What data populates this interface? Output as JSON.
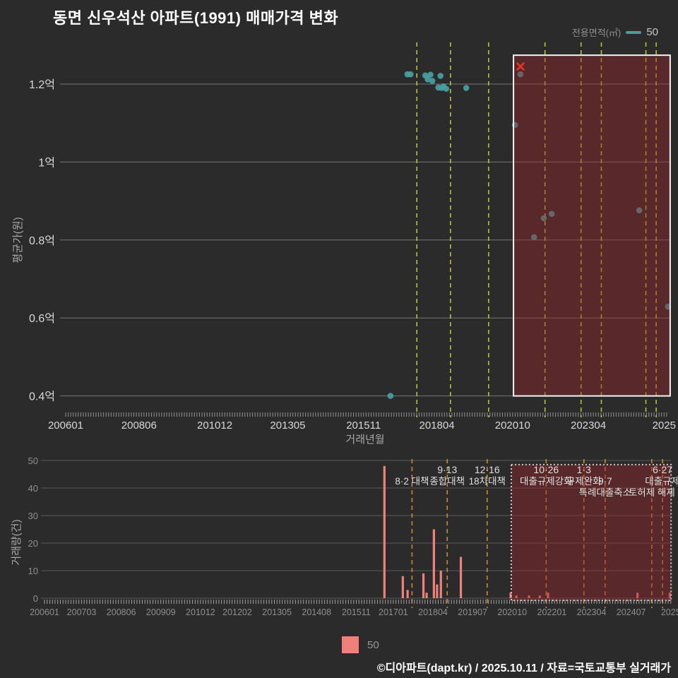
{
  "title": "동면 신우석산 아파트(1991) 매매가격 변화",
  "legend_top": {
    "label": "전용면적(㎡)",
    "value": "50"
  },
  "legend_bottom": {
    "value": "50"
  },
  "footer": "©디아파트(dapt.kr) / 2025.10.11 / 자료=국토교통부 실거래가",
  "colors": {
    "background": "#2b2b2b",
    "point": "#46a0a3",
    "bar": "#f0807a",
    "cancel_marker": "#e53529",
    "highlight_fill": "rgba(150,35,40,0.42)",
    "highlight_border_price": "#f5f5f5",
    "highlight_border_volume": "#cccccc",
    "policy_line_price": "#b8c232",
    "policy_line_volume": "#cc8832",
    "legend_line": "#4d9a9a",
    "grid": "#cfcfcf",
    "tick_label": "#d8d8d8",
    "minor_tick": "#b5b5b5",
    "axis_title": "#a8a8a8",
    "annotation_text": "#e0e0e0",
    "volume_tick_label": "#8f8f8f"
  },
  "chart_data": {
    "annotations": [
      {
        "t": 2017.59,
        "rows": [
          "",
          "8·2 대책",
          ""
        ]
      },
      {
        "t": 2018.7,
        "rows": [
          "9·13",
          "종합대책",
          ""
        ]
      },
      {
        "t": 2019.96,
        "rows": [
          "12·16",
          "18차대책",
          ""
        ]
      },
      {
        "t": 2021.82,
        "rows": [
          "10·26",
          "대출규제강화",
          ""
        ]
      },
      {
        "t": 2023.01,
        "rows": [
          "1·3",
          "규제완화",
          ""
        ]
      },
      {
        "t": 2023.68,
        "rows": [
          "",
          "9·7",
          "특례대출축소"
        ]
      },
      {
        "t": 2025.15,
        "rows": [
          "",
          "",
          "토허제 해제"
        ]
      },
      {
        "t": 2025.49,
        "rows": [
          "6·27",
          "대출규제",
          ""
        ]
      }
    ],
    "highlight_region": {
      "price": {
        "t0": 2020.78,
        "t1": 2025.95,
        "v0": 0.4,
        "v1": 1.274
      },
      "volume": {
        "t0": 2020.72,
        "t1": 2025.76,
        "c0": -0.8,
        "c1": 48.5
      }
    },
    "price_chart": {
      "type": "scatter",
      "series_name": "50",
      "xlabel": "거래년월",
      "ylabel": "평균가(원)",
      "unit": "억",
      "xlim": [
        2006.0,
        2025.92
      ],
      "ylim_values": [
        0.4,
        1.274
      ],
      "yticks": [
        {
          "v": 1.2,
          "label": "1.2억"
        },
        {
          "v": 1.0,
          "label": "1억"
        },
        {
          "v": 0.8,
          "label": "0.8억"
        },
        {
          "v": 0.6,
          "label": "0.6억"
        },
        {
          "v": 0.4,
          "label": "0.4억"
        }
      ],
      "xticks": [
        {
          "t": 2006.0,
          "label": "200601"
        },
        {
          "t": 2008.42,
          "label": "200806"
        },
        {
          "t": 2010.92,
          "label": "201012"
        },
        {
          "t": 2013.33,
          "label": "201305"
        },
        {
          "t": 2015.83,
          "label": "201511"
        },
        {
          "t": 2018.25,
          "label": "201804"
        },
        {
          "t": 2020.75,
          "label": "202010"
        },
        {
          "t": 2023.25,
          "label": "202304"
        },
        {
          "t": 2025.75,
          "label": "2025"
        }
      ],
      "points": [
        {
          "ym": "201609",
          "t": 2016.72,
          "v": 0.4
        },
        {
          "ym": "201704",
          "t": 2017.28,
          "v": 1.225
        },
        {
          "ym": "201705",
          "t": 2017.38,
          "v": 1.225
        },
        {
          "ym": "201711",
          "t": 2017.87,
          "v": 1.222
        },
        {
          "ym": "201712",
          "t": 2017.95,
          "v": 1.212
        },
        {
          "ym": "201801",
          "t": 2018.04,
          "v": 1.224
        },
        {
          "ym": "201802",
          "t": 2018.1,
          "v": 1.208
        },
        {
          "ym": "201804",
          "t": 2018.3,
          "v": 1.191
        },
        {
          "ym": "201805",
          "t": 2018.37,
          "v": 1.221
        },
        {
          "ym": "201805",
          "t": 2018.41,
          "v": 1.19
        },
        {
          "ym": "201806",
          "t": 2018.47,
          "v": 1.194
        },
        {
          "ym": "201807",
          "t": 2018.56,
          "v": 1.188
        },
        {
          "ym": "201903",
          "t": 2019.22,
          "v": 1.19
        },
        {
          "ym": "202010",
          "t": 2020.83,
          "v": 1.095
        },
        {
          "ym": "202101",
          "t": 2021.01,
          "v": 1.225
        },
        {
          "ym": "202106",
          "t": 2021.46,
          "v": 0.807
        },
        {
          "ym": "202110",
          "t": 2021.78,
          "v": 0.856
        },
        {
          "ym": "202201",
          "t": 2022.04,
          "v": 0.867
        },
        {
          "ym": "202411",
          "t": 2024.93,
          "v": 0.876
        },
        {
          "ym": "202510",
          "t": 2025.88,
          "v": 0.629
        }
      ],
      "cancel_marker": {
        "ym": "202101",
        "t": 2021.01,
        "v": 1.245
      }
    },
    "volume_chart": {
      "type": "bar",
      "series_name": "50",
      "ylabel": "거래량(건)",
      "xlim": [
        2006.0,
        2025.92
      ],
      "ylim": [
        0,
        50
      ],
      "yticks": [
        0,
        10,
        20,
        30,
        40,
        50
      ],
      "xticks": [
        {
          "t": 2006.0,
          "label": "200601"
        },
        {
          "t": 2007.17,
          "label": "200703"
        },
        {
          "t": 2008.42,
          "label": "200806"
        },
        {
          "t": 2009.67,
          "label": "200909"
        },
        {
          "t": 2010.92,
          "label": "201012"
        },
        {
          "t": 2012.08,
          "label": "201202"
        },
        {
          "t": 2013.33,
          "label": "201305"
        },
        {
          "t": 2014.58,
          "label": "201408"
        },
        {
          "t": 2015.83,
          "label": "201511"
        },
        {
          "t": 2017.0,
          "label": "201701"
        },
        {
          "t": 2018.25,
          "label": "201804"
        },
        {
          "t": 2019.5,
          "label": "201907"
        },
        {
          "t": 2020.75,
          "label": "202010"
        },
        {
          "t": 2022.0,
          "label": "202201"
        },
        {
          "t": 2023.25,
          "label": "202304"
        },
        {
          "t": 2024.5,
          "label": "202407"
        },
        {
          "t": 2025.75,
          "label": "2025"
        }
      ],
      "bars": [
        {
          "ym": "201609",
          "t": 2016.72,
          "count": 48
        },
        {
          "ym": "201704",
          "t": 2017.3,
          "count": 8
        },
        {
          "ym": "201706",
          "t": 2017.45,
          "count": 3
        },
        {
          "ym": "201712",
          "t": 2017.95,
          "count": 9
        },
        {
          "ym": "201801",
          "t": 2018.05,
          "count": 2
        },
        {
          "ym": "201804",
          "t": 2018.28,
          "count": 25
        },
        {
          "ym": "201805",
          "t": 2018.38,
          "count": 5
        },
        {
          "ym": "201806",
          "t": 2018.5,
          "count": 10
        },
        {
          "ym": "201902",
          "t": 2019.13,
          "count": 15
        },
        {
          "ym": "202009",
          "t": 2020.7,
          "count": 2
        },
        {
          "ym": "202011",
          "t": 2020.88,
          "count": 1
        },
        {
          "ym": "202104",
          "t": 2021.28,
          "count": 1
        },
        {
          "ym": "202108",
          "t": 2021.62,
          "count": 1
        },
        {
          "ym": "202111",
          "t": 2021.88,
          "count": 2
        },
        {
          "ym": "202409",
          "t": 2024.7,
          "count": 2
        },
        {
          "ym": "202509",
          "t": 2025.72,
          "count": 2
        }
      ]
    }
  }
}
